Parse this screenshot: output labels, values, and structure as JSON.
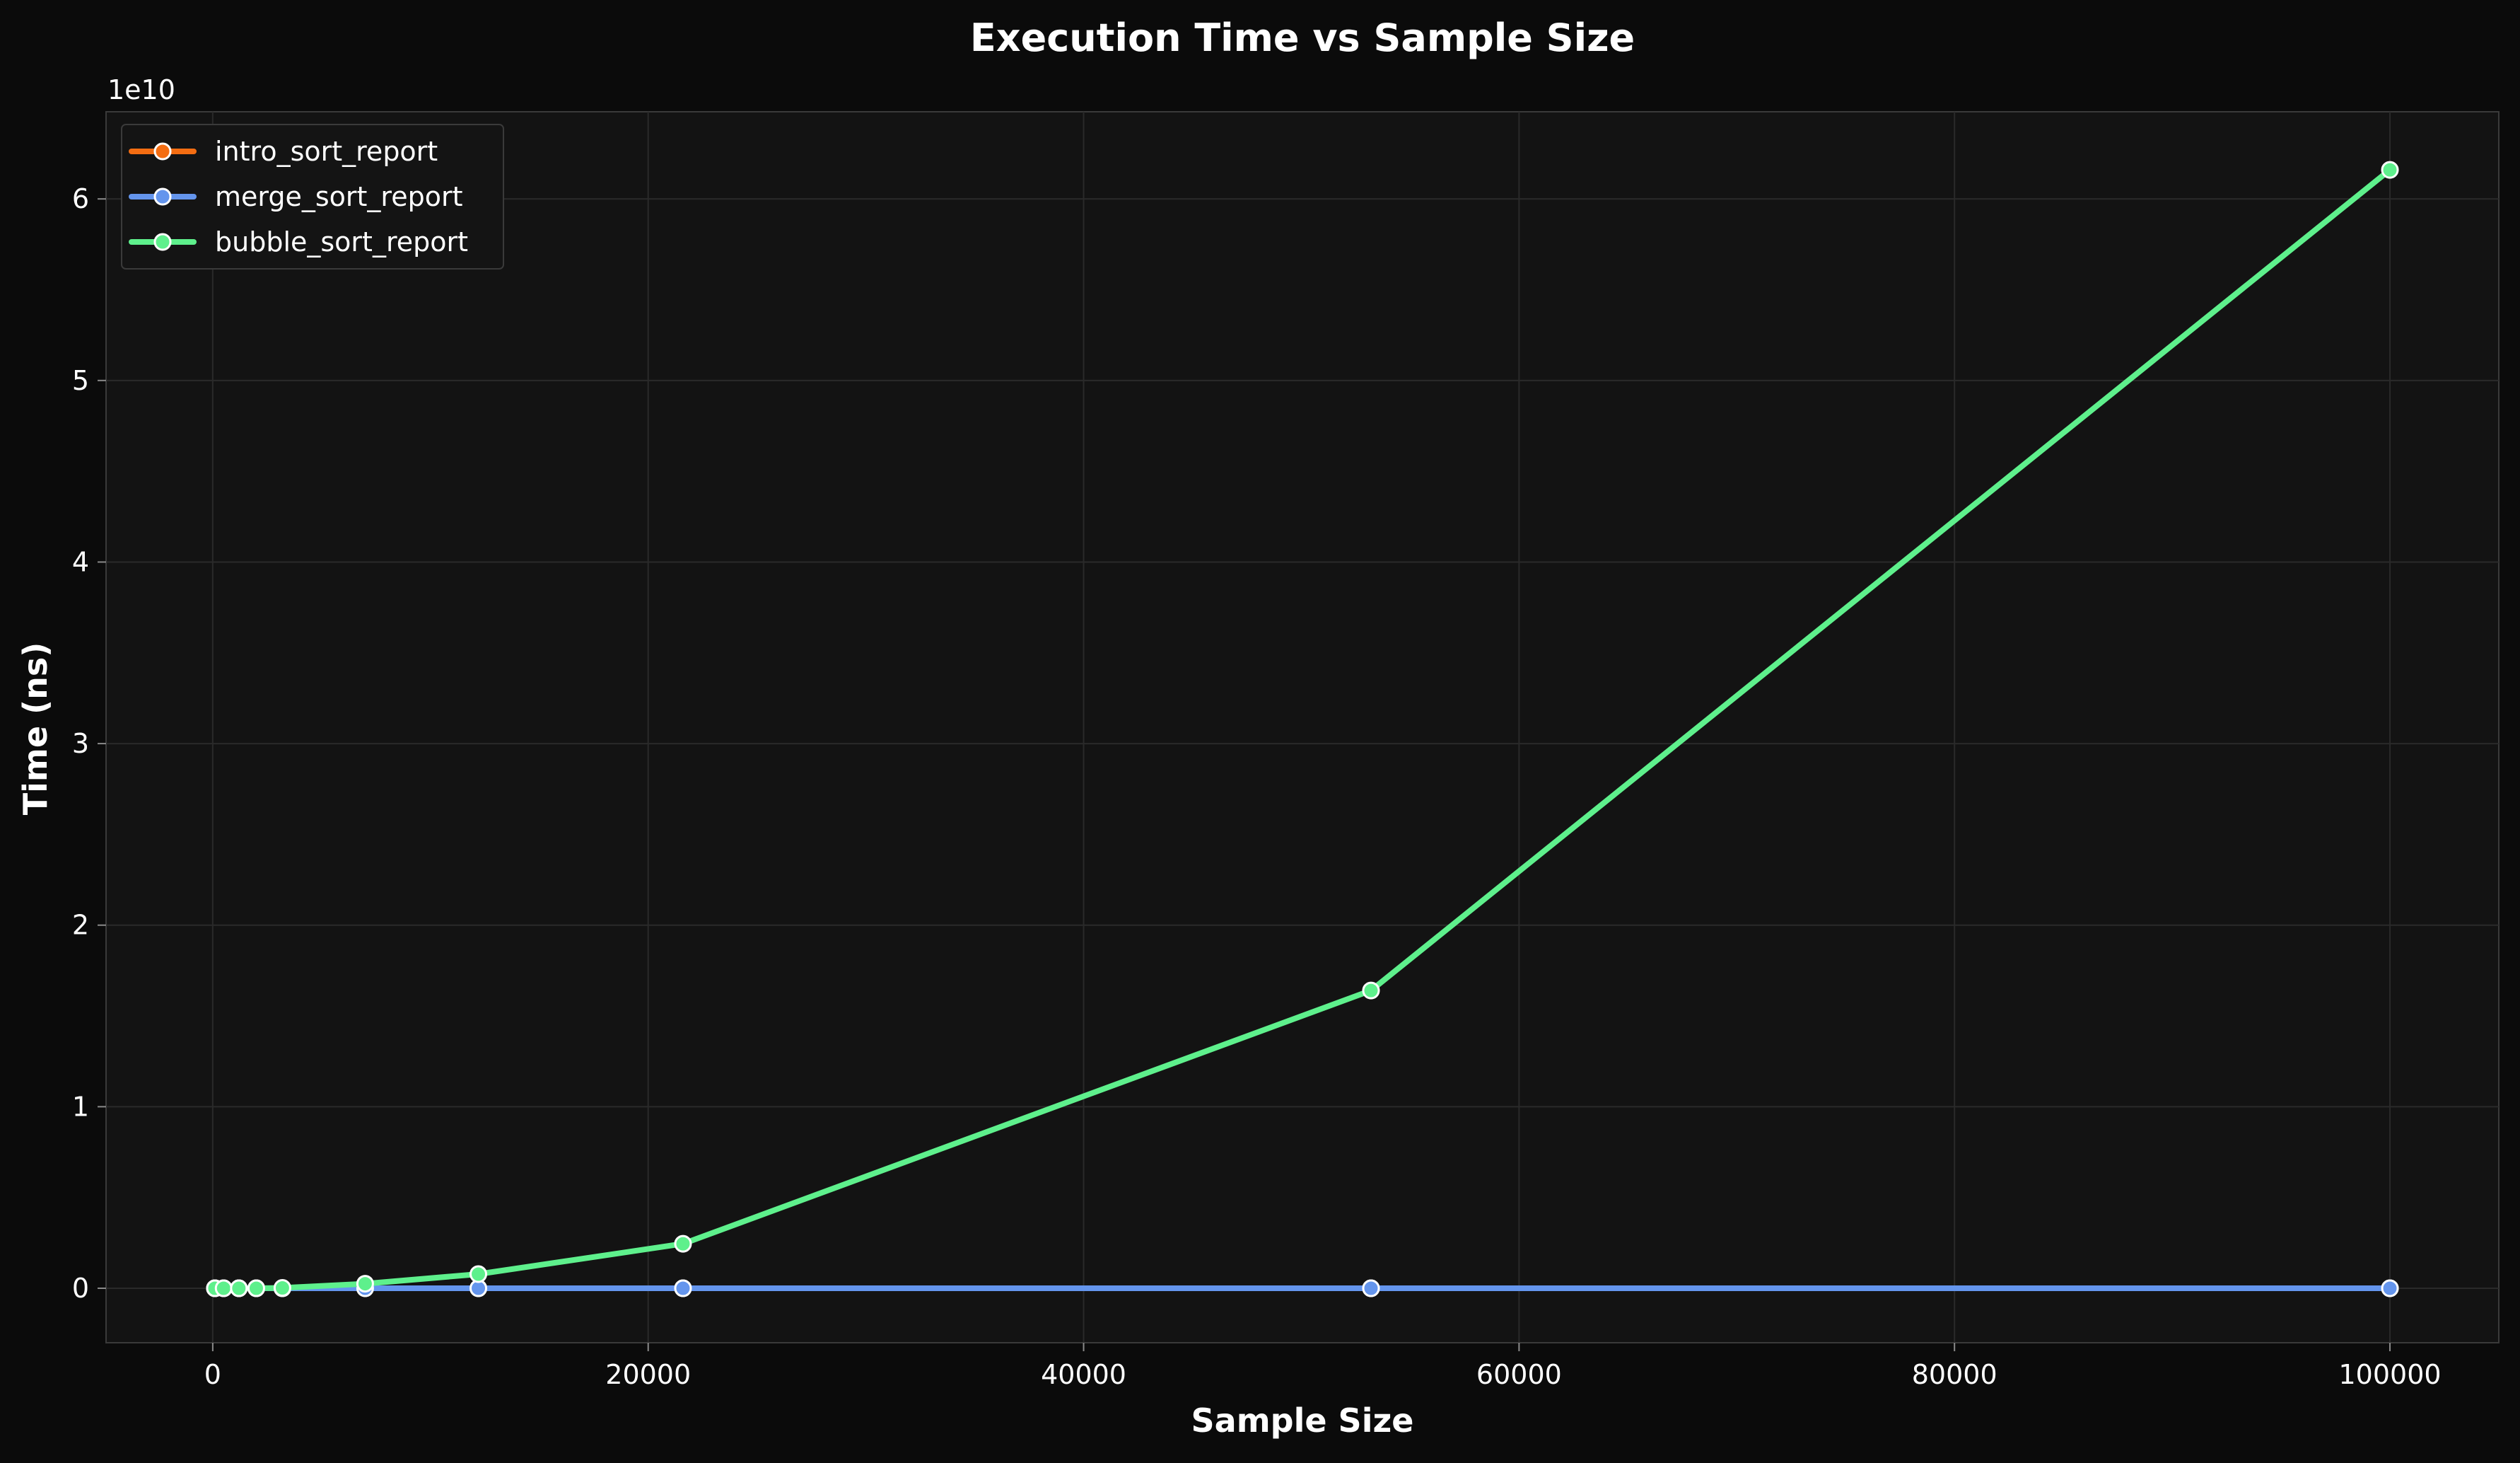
{
  "chart_data": {
    "type": "line",
    "title": "Execution Time vs Sample Size",
    "xlabel": "Sample Size",
    "ylabel": "Time (ns)",
    "y_offset_label": "1e10",
    "xlim": [
      -4900,
      105000
    ],
    "ylim": [
      -3000000000.0,
      64800000000.0
    ],
    "xticks": [
      0,
      20000,
      40000,
      60000,
      80000,
      100000
    ],
    "xtick_labels": [
      "0",
      "20000",
      "40000",
      "60000",
      "80000",
      "100000"
    ],
    "yticks": [
      0,
      10000000000.0,
      20000000000.0,
      30000000000.0,
      40000000000.0,
      50000000000.0,
      60000000000.0
    ],
    "ytick_labels": [
      "0",
      "1",
      "2",
      "3",
      "4",
      "5",
      "6"
    ],
    "grid": true,
    "legend_position": "top-left",
    "background_color": "#0b0b0b",
    "plot_background_color": "#131313",
    "series": [
      {
        "name": "intro_sort_report",
        "color": "#f46d12",
        "x": [
          100,
          500,
          1200,
          2000,
          3200,
          7000,
          12200,
          21600,
          53200,
          100000
        ],
        "y": [
          0,
          0,
          0,
          0,
          0,
          0,
          0,
          0,
          0,
          0
        ]
      },
      {
        "name": "merge_sort_report",
        "color": "#6495ed",
        "x": [
          100,
          500,
          1200,
          2000,
          3200,
          7000,
          12200,
          21600,
          53200,
          100000
        ],
        "y": [
          0,
          0,
          0,
          0,
          0,
          0,
          0,
          0,
          0,
          0
        ]
      },
      {
        "name": "bubble_sort_report",
        "color": "#5ef08c",
        "x": [
          100,
          500,
          1200,
          2000,
          3200,
          7000,
          12200,
          21600,
          53200,
          100000
        ],
        "y": [
          0,
          0,
          0,
          0,
          20000000,
          250000000,
          780000000,
          2450000000,
          16400000000,
          61600000000
        ]
      }
    ]
  }
}
